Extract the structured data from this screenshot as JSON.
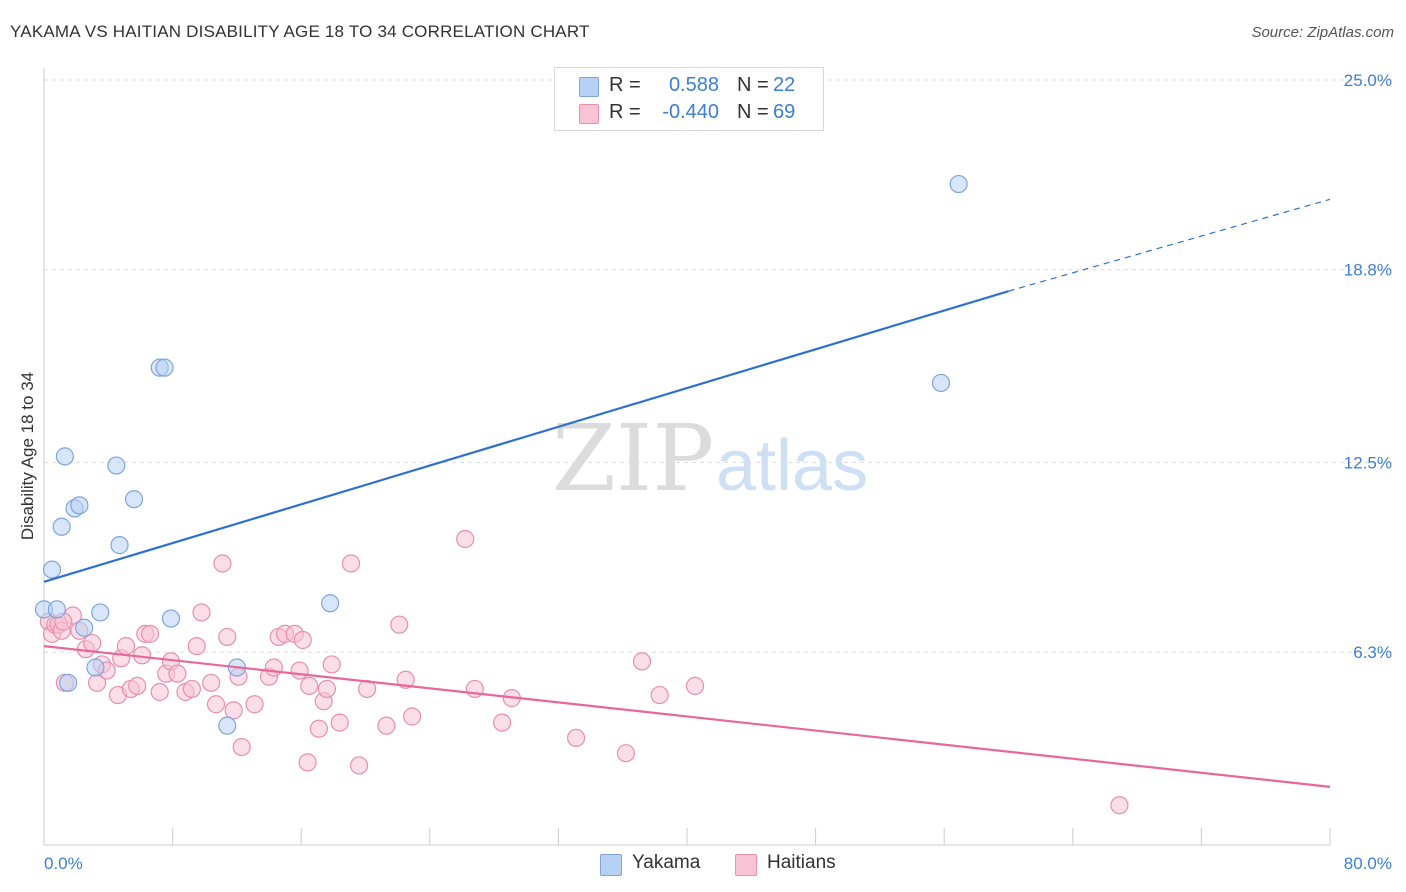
{
  "title": "YAKAMA VS HAITIAN DISABILITY AGE 18 TO 34 CORRELATION CHART",
  "source": "Source: ZipAtlas.com",
  "watermark": {
    "zip": "ZIP",
    "atlas": "atlas"
  },
  "colors": {
    "yakama_fill": "#b7d1f5",
    "yakama_stroke": "#7ea6dc",
    "yakama_line": "#2d72cf",
    "haitians_fill": "#f8c3d4",
    "haitians_stroke": "#e890ad",
    "haitians_line": "#e8689a",
    "tick_label": "#3d7fd6",
    "grid": "#dddddd"
  },
  "legend": {
    "rows": [
      {
        "r_label": "R =",
        "r_value": "0.588",
        "n_label": "N =",
        "n_value": "22"
      },
      {
        "r_label": "R =",
        "r_value": "-0.440",
        "n_label": "N =",
        "n_value": "69"
      }
    ]
  },
  "bottom_legend": {
    "yakama": "Yakama",
    "haitians": "Haitians"
  },
  "chart_data": {
    "type": "scatter",
    "title": "YAKAMA VS HAITIAN DISABILITY AGE 18 TO 34 CORRELATION CHART",
    "xlabel": "",
    "ylabel": "Disability Age 18 to 34",
    "xlim": [
      0,
      80
    ],
    "ylim": [
      0,
      25.0
    ],
    "x_tick_labels": [
      "0.0%",
      "80.0%"
    ],
    "y_ticks": [
      6.3,
      12.5,
      18.8,
      25.0
    ],
    "y_tick_labels": [
      "6.3%",
      "12.5%",
      "18.8%",
      "25.0%"
    ],
    "grid": true,
    "legend_position": "top-center",
    "series": [
      {
        "name": "Yakama",
        "r": 0.588,
        "n": 22,
        "trend": {
          "x0": 0,
          "y0": 8.6,
          "x1": 60,
          "y1": 18.1,
          "dashed_to_x": 80,
          "dashed_to_y": 21.1
        },
        "points": [
          [
            0.0,
            7.7
          ],
          [
            0.5,
            9.0
          ],
          [
            0.8,
            7.7
          ],
          [
            1.1,
            10.4
          ],
          [
            1.3,
            12.7
          ],
          [
            1.5,
            5.3
          ],
          [
            1.9,
            11.0
          ],
          [
            2.2,
            11.1
          ],
          [
            2.5,
            7.1
          ],
          [
            3.2,
            5.8
          ],
          [
            3.5,
            7.6
          ],
          [
            4.5,
            12.4
          ],
          [
            4.7,
            9.8
          ],
          [
            5.6,
            11.3
          ],
          [
            7.2,
            15.6
          ],
          [
            7.5,
            15.6
          ],
          [
            7.9,
            7.4
          ],
          [
            11.4,
            3.9
          ],
          [
            12.0,
            5.8
          ],
          [
            17.8,
            7.9
          ],
          [
            55.8,
            15.1
          ],
          [
            56.9,
            21.6
          ]
        ]
      },
      {
        "name": "Haitians",
        "r": -0.44,
        "n": 69,
        "trend": {
          "x0": 0,
          "y0": 6.5,
          "x1": 80,
          "y1": 1.9
        },
        "points": [
          [
            0.3,
            7.3
          ],
          [
            0.5,
            6.9
          ],
          [
            0.7,
            7.2
          ],
          [
            0.9,
            7.2
          ],
          [
            1.1,
            7.0
          ],
          [
            1.3,
            5.3
          ],
          [
            1.8,
            7.5
          ],
          [
            2.2,
            7.0
          ],
          [
            2.6,
            6.4
          ],
          [
            3.0,
            6.6
          ],
          [
            3.3,
            5.3
          ],
          [
            3.6,
            5.9
          ],
          [
            3.9,
            5.7
          ],
          [
            4.6,
            4.9
          ],
          [
            4.8,
            6.1
          ],
          [
            5.1,
            6.5
          ],
          [
            5.4,
            5.1
          ],
          [
            5.8,
            5.2
          ],
          [
            6.1,
            6.2
          ],
          [
            6.3,
            6.9
          ],
          [
            6.6,
            6.9
          ],
          [
            7.2,
            5.0
          ],
          [
            7.6,
            5.6
          ],
          [
            7.9,
            6.0
          ],
          [
            8.3,
            5.6
          ],
          [
            8.8,
            5.0
          ],
          [
            9.2,
            5.1
          ],
          [
            9.5,
            6.5
          ],
          [
            9.8,
            7.6
          ],
          [
            10.4,
            5.3
          ],
          [
            10.7,
            4.6
          ],
          [
            11.1,
            9.2
          ],
          [
            11.4,
            6.8
          ],
          [
            11.8,
            4.4
          ],
          [
            12.1,
            5.5
          ],
          [
            12.3,
            3.2
          ],
          [
            13.1,
            4.6
          ],
          [
            14.0,
            5.5
          ],
          [
            14.3,
            5.8
          ],
          [
            14.6,
            6.8
          ],
          [
            15.0,
            6.9
          ],
          [
            15.6,
            6.9
          ],
          [
            15.9,
            5.7
          ],
          [
            16.1,
            6.7
          ],
          [
            16.4,
            2.7
          ],
          [
            16.5,
            5.2
          ],
          [
            17.1,
            3.8
          ],
          [
            17.4,
            4.7
          ],
          [
            17.6,
            5.1
          ],
          [
            17.9,
            5.9
          ],
          [
            18.4,
            4.0
          ],
          [
            19.1,
            9.2
          ],
          [
            19.6,
            2.6
          ],
          [
            20.1,
            5.1
          ],
          [
            21.3,
            3.9
          ],
          [
            22.1,
            7.2
          ],
          [
            22.5,
            5.4
          ],
          [
            22.9,
            4.2
          ],
          [
            26.2,
            10.0
          ],
          [
            26.8,
            5.1
          ],
          [
            28.5,
            4.0
          ],
          [
            29.1,
            4.8
          ],
          [
            33.1,
            3.5
          ],
          [
            36.2,
            3.0
          ],
          [
            37.2,
            6.0
          ],
          [
            38.3,
            4.9
          ],
          [
            40.5,
            5.2
          ],
          [
            66.9,
            1.3
          ],
          [
            1.2,
            7.3
          ]
        ]
      }
    ]
  }
}
